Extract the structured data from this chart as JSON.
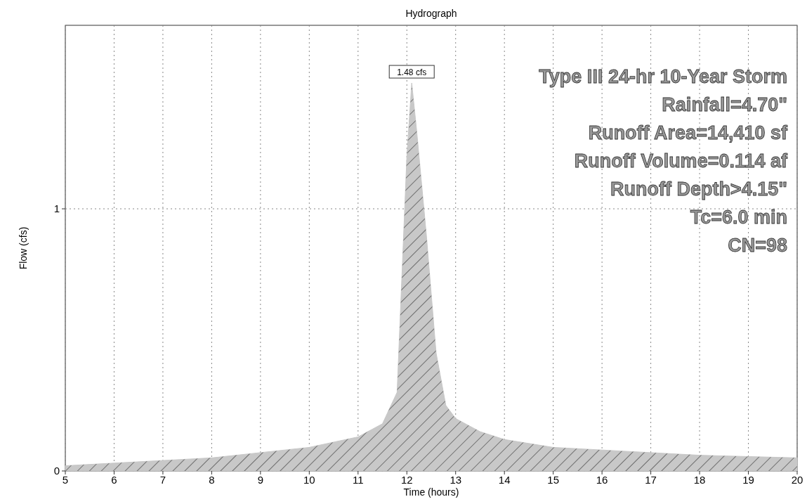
{
  "chart_data": {
    "type": "area",
    "title": "Hydrograph",
    "xlabel": "Time  (hours)",
    "ylabel": "Flow  (cfs)",
    "x": [
      5,
      6,
      7,
      8,
      9,
      10,
      11,
      11.5,
      11.8,
      12.0,
      12.1,
      12.2,
      12.4,
      12.6,
      12.8,
      13,
      13.5,
      14,
      15,
      16,
      17,
      18,
      19,
      20
    ],
    "series": [
      {
        "color": "#c8c8c8",
        "values": [
          0.02,
          0.03,
          0.04,
          0.05,
          0.07,
          0.09,
          0.13,
          0.18,
          0.3,
          1.2,
          1.48,
          1.3,
          0.9,
          0.45,
          0.25,
          0.2,
          0.15,
          0.12,
          0.09,
          0.08,
          0.07,
          0.06,
          0.055,
          0.05
        ]
      }
    ],
    "xlim": [
      5,
      20
    ],
    "xticks": [
      5,
      6,
      7,
      8,
      9,
      10,
      11,
      12,
      13,
      14,
      15,
      16,
      17,
      18,
      19,
      20
    ],
    "ylim": [
      0,
      1.7
    ],
    "yticks": [
      0,
      1
    ],
    "grid": true,
    "annotations": [
      {
        "text": "1.48 cfs",
        "x": 12.1,
        "y": 1.48
      },
      "Type III 24-hr 10-Year Storm",
      "Rainfall=4.70\"",
      "Runoff Area=14,410 sf",
      "Runoff Volume=0.114 af",
      "Runoff Depth>4.15\"",
      "Tc=6.0 min",
      "CN=98"
    ]
  }
}
